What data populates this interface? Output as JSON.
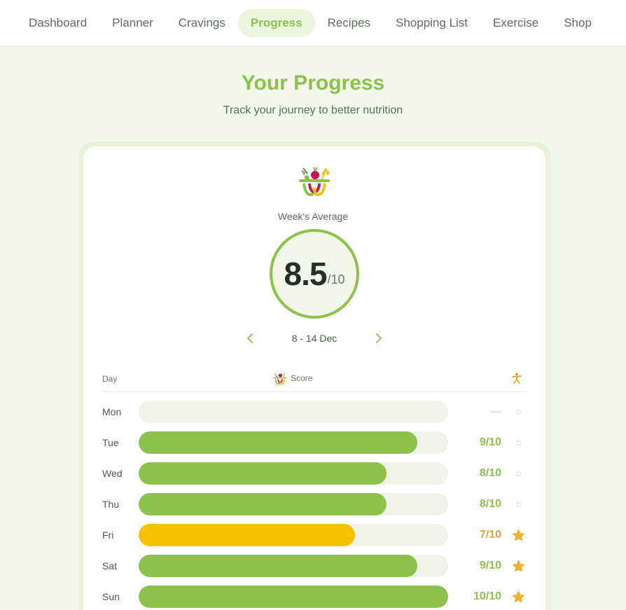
{
  "nav": {
    "items": [
      {
        "label": "Dashboard",
        "name": "nav-dashboard"
      },
      {
        "label": "Planner",
        "name": "nav-planner"
      },
      {
        "label": "Cravings",
        "name": "nav-cravings"
      },
      {
        "label": "Progress",
        "name": "nav-progress",
        "active": true
      },
      {
        "label": "Recipes",
        "name": "nav-recipes"
      },
      {
        "label": "Shopping List",
        "name": "nav-shopping-list"
      },
      {
        "label": "Exercise",
        "name": "nav-exercise"
      },
      {
        "label": "Shop",
        "name": "nav-shop"
      }
    ]
  },
  "header": {
    "title": "Your Progress",
    "subtitle": "Track your journey to better nutrition"
  },
  "summary": {
    "label": "Week's Average",
    "score": "8.5",
    "denominator": "/10",
    "week_range": "8 - 14 Dec",
    "prev_icon": "chevron-left-icon",
    "next_icon": "chevron-right-icon"
  },
  "table": {
    "headers": {
      "day": "Day",
      "score": "Score",
      "exercise_icon": "person-exercise-icon"
    },
    "rows": [
      {
        "day": "Mon",
        "score": null,
        "score_text": "—",
        "exercise": false
      },
      {
        "day": "Tue",
        "score": 9,
        "score_text": "9/10",
        "exercise": false
      },
      {
        "day": "Wed",
        "score": 8,
        "score_text": "8/10",
        "exercise": false
      },
      {
        "day": "Thu",
        "score": 8,
        "score_text": "8/10",
        "exercise": false
      },
      {
        "day": "Fri",
        "score": 7,
        "score_text": "7/10",
        "exercise": true
      },
      {
        "day": "Sat",
        "score": 9,
        "score_text": "9/10",
        "exercise": true
      },
      {
        "day": "Sun",
        "score": 10,
        "score_text": "10/10",
        "exercise": true
      }
    ],
    "max_score": 10
  },
  "colors": {
    "accent": "#8bc34a",
    "warn": "#f5c100",
    "warn_text": "#e8a33a",
    "star": "#f0b429",
    "track": "#f0f3e8"
  }
}
